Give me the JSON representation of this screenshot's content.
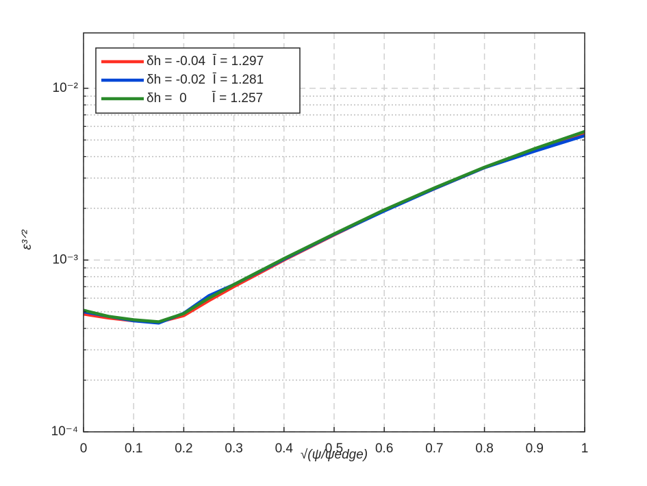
{
  "chart_data": {
    "type": "line",
    "log_y": true,
    "grid": true,
    "x_label": "√(ψ/ψedge)",
    "y_label": "ε³ᐟ²",
    "x": [
      0,
      0.05,
      0.1,
      0.15,
      0.2,
      0.25,
      0.3,
      0.4,
      0.5,
      0.6,
      0.7,
      0.8,
      0.9,
      1.0
    ],
    "series": [
      {
        "name": "δh = -0.04  Ī = 1.297",
        "color": "#ff3024",
        "values": [
          0.000485,
          0.00046,
          0.000443,
          0.000435,
          0.000475,
          0.00058,
          0.0007,
          0.001,
          0.0014,
          0.00194,
          0.0026,
          0.00345,
          0.0044,
          0.0055
        ]
      },
      {
        "name": "δh = -0.02  Ī = 1.281",
        "color": "#0047d6",
        "values": [
          0.0005,
          0.00047,
          0.000443,
          0.00043,
          0.00049,
          0.00062,
          0.00072,
          0.00101,
          0.00141,
          0.00193,
          0.0026,
          0.00345,
          0.0043,
          0.0053
        ]
      },
      {
        "name": "δh =  0       Ī = 1.257",
        "color": "#2a8a2a",
        "values": [
          0.00051,
          0.00047,
          0.000449,
          0.000437,
          0.000488,
          0.0006,
          0.00072,
          0.00102,
          0.00142,
          0.00196,
          0.00263,
          0.00347,
          0.00445,
          0.0056
        ]
      }
    ],
    "xlim": [
      0,
      1
    ],
    "xticks": [
      0,
      0.1,
      0.2,
      0.3,
      0.4,
      0.5,
      0.6,
      0.7,
      0.8,
      0.9,
      1
    ],
    "ylim": [
      0.0001,
      0.021
    ],
    "yticks": [
      {
        "value": 0.0001,
        "label": "10⁻⁴"
      },
      {
        "value": 0.001,
        "label": "10⁻³"
      },
      {
        "value": 0.01,
        "label": "10⁻²"
      }
    ],
    "y_minor_grid": [
      0.0002,
      0.0003,
      0.0004,
      0.0005,
      0.0006,
      0.0007,
      0.0008,
      0.0009,
      0.002,
      0.003,
      0.004,
      0.005,
      0.006,
      0.007,
      0.008,
      0.009
    ],
    "legend": "upper left"
  }
}
